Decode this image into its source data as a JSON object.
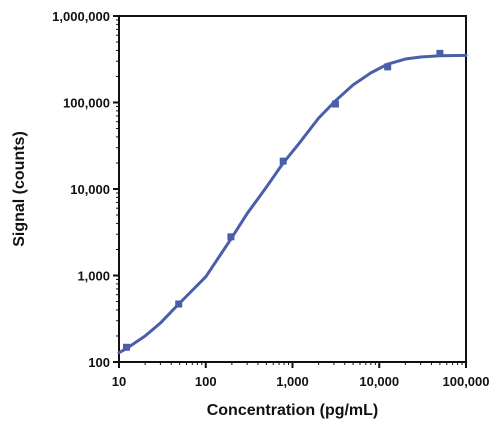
{
  "chart_data": {
    "type": "scatter",
    "xlabel": "Concentration (pg/mL)",
    "ylabel": "Signal (counts)",
    "xscale": "log",
    "yscale": "log",
    "xlim": [
      10,
      100000
    ],
    "ylim": [
      100,
      1000000
    ],
    "grid": false,
    "legend": "none",
    "x_ticks": [
      {
        "value": 10,
        "label": "10"
      },
      {
        "value": 100,
        "label": "100"
      },
      {
        "value": 1000,
        "label": "1,000"
      },
      {
        "value": 10000,
        "label": "10,000"
      },
      {
        "value": 100000,
        "label": "100,000"
      }
    ],
    "y_ticks": [
      {
        "value": 100,
        "label": "100"
      },
      {
        "value": 1000,
        "label": "1,000"
      },
      {
        "value": 10000,
        "label": "10,000"
      },
      {
        "value": 100000,
        "label": "100,000"
      },
      {
        "value": 1000000,
        "label": "1,000,000"
      }
    ],
    "series": [
      {
        "type": "scatter",
        "color": "#4a5fa8",
        "points": [
          {
            "x": 12.2,
            "y": 148
          },
          {
            "x": 48.8,
            "y": 468
          },
          {
            "x": 195,
            "y": 2800
          },
          {
            "x": 781,
            "y": 21000
          },
          {
            "x": 3125,
            "y": 96000
          },
          {
            "x": 12500,
            "y": 258000
          },
          {
            "x": 50000,
            "y": 370000
          }
        ]
      },
      {
        "type": "line",
        "color": "#4a5fa8",
        "points": [
          {
            "x": 10,
            "y": 128
          },
          {
            "x": 12.2,
            "y": 143
          },
          {
            "x": 20,
            "y": 200
          },
          {
            "x": 30,
            "y": 282
          },
          {
            "x": 48.8,
            "y": 468
          },
          {
            "x": 100,
            "y": 966
          },
          {
            "x": 195,
            "y": 2636
          },
          {
            "x": 300,
            "y": 5200
          },
          {
            "x": 500,
            "y": 10500
          },
          {
            "x": 781,
            "y": 19960
          },
          {
            "x": 1200,
            "y": 34000
          },
          {
            "x": 2000,
            "y": 66000
          },
          {
            "x": 3125,
            "y": 104600
          },
          {
            "x": 5000,
            "y": 160000
          },
          {
            "x": 8000,
            "y": 220000
          },
          {
            "x": 12500,
            "y": 277600
          },
          {
            "x": 20000,
            "y": 318000
          },
          {
            "x": 30000,
            "y": 336000
          },
          {
            "x": 50000,
            "y": 347000
          },
          {
            "x": 100000,
            "y": 351000
          }
        ]
      }
    ]
  }
}
